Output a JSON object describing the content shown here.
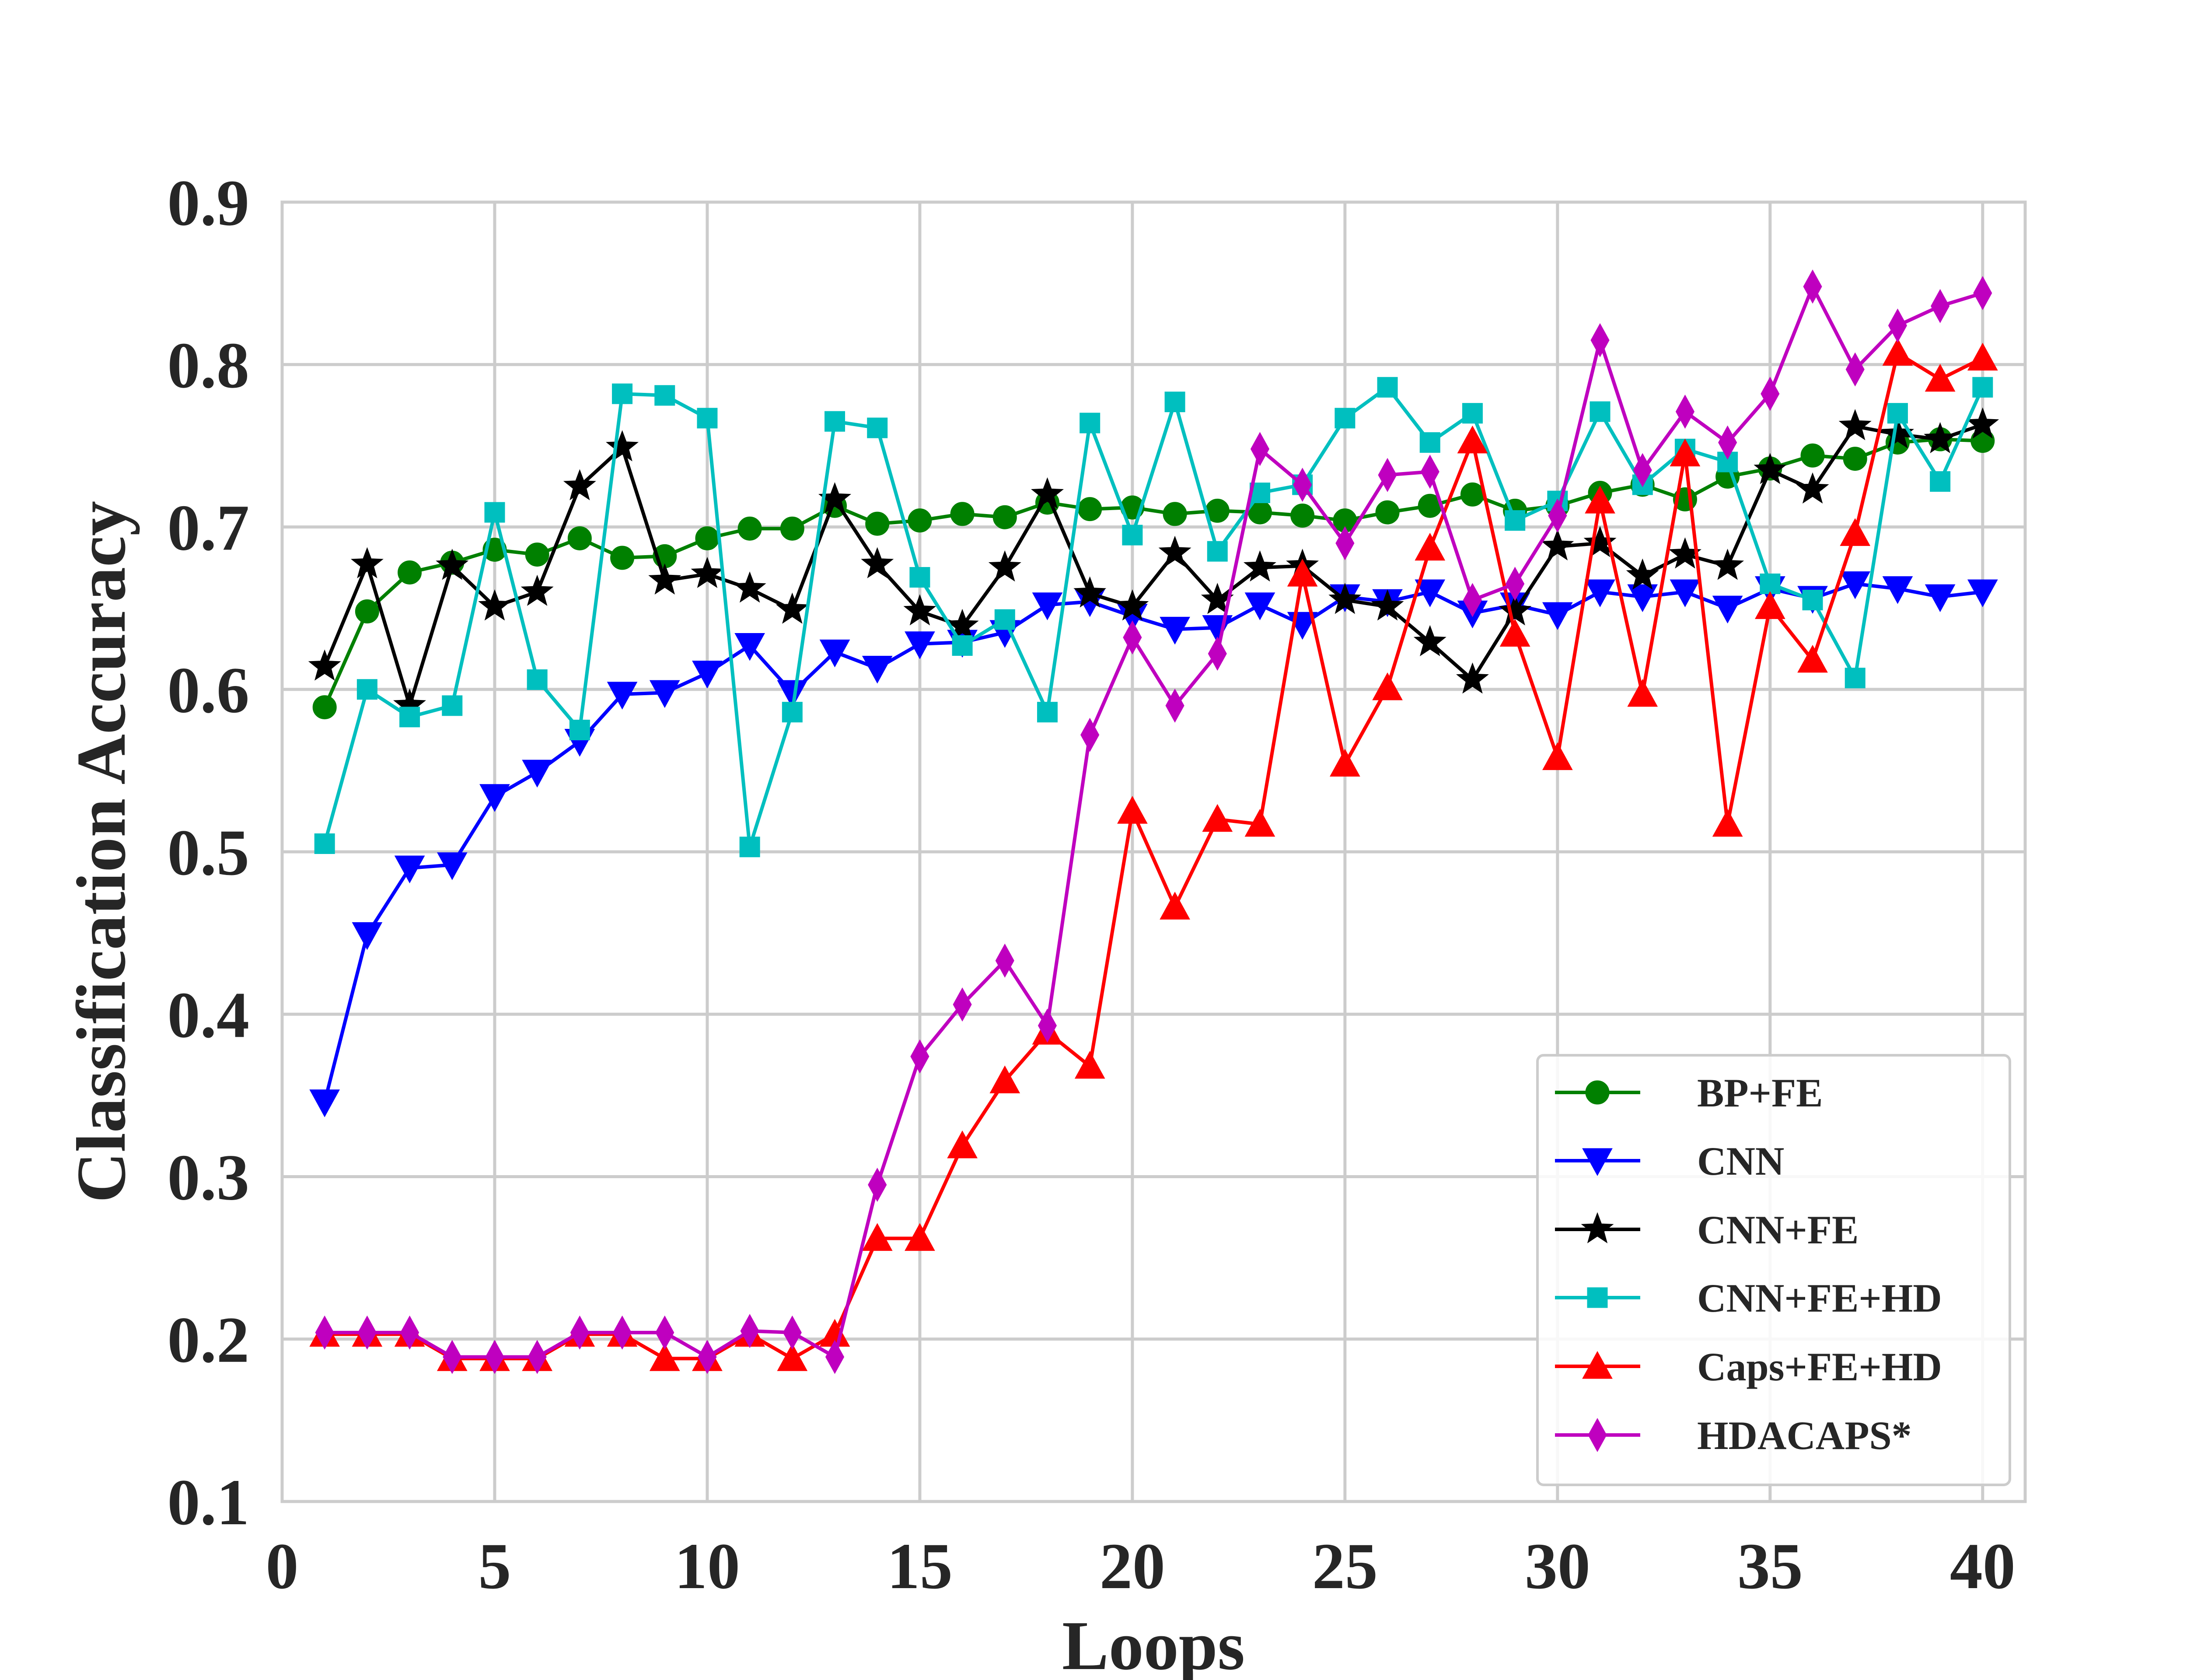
{
  "chart_data": {
    "type": "line",
    "title": "",
    "xlabel": "Loops",
    "ylabel": "Classification Accuracy",
    "xlim": [
      0,
      41
    ],
    "ylim": [
      0.1,
      0.9
    ],
    "xticks": [
      0,
      5,
      10,
      15,
      20,
      25,
      30,
      35,
      40
    ],
    "xtick_labels": [
      "0",
      "5",
      "10",
      "15",
      "20",
      "25",
      "30",
      "35",
      "40"
    ],
    "yticks": [
      0.1,
      0.2,
      0.3,
      0.4,
      0.5,
      0.6,
      0.7,
      0.8,
      0.9
    ],
    "ytick_labels": [
      "0.1",
      "0.2",
      "0.3",
      "0.4",
      "0.5",
      "0.6",
      "0.7",
      "0.8",
      "0.9"
    ],
    "grid": true,
    "legend_position": "lower-right",
    "x": [
      1,
      2,
      3,
      4,
      5,
      6,
      7,
      8,
      9,
      10,
      11,
      12,
      13,
      14,
      15,
      16,
      17,
      18,
      19,
      20,
      21,
      22,
      23,
      24,
      25,
      26,
      27,
      28,
      29,
      30,
      31,
      32,
      33,
      34,
      35,
      36,
      37,
      38,
      39,
      40
    ],
    "series": [
      {
        "name": "BP+FE",
        "color": "#008000",
        "marker": "circle",
        "values": [
          0.589,
          0.648,
          0.672,
          0.678,
          0.686,
          0.683,
          0.693,
          0.681,
          0.682,
          0.693,
          0.699,
          0.699,
          0.713,
          0.702,
          0.704,
          0.708,
          0.706,
          0.715,
          0.711,
          0.712,
          0.708,
          0.71,
          0.709,
          0.707,
          0.704,
          0.709,
          0.713,
          0.72,
          0.71,
          0.713,
          0.721,
          0.726,
          0.717,
          0.731,
          0.736,
          0.744,
          0.742,
          0.752,
          0.754,
          0.753
        ]
      },
      {
        "name": "CNN",
        "color": "#0000ff",
        "marker": "triangle-down",
        "values": [
          0.346,
          0.449,
          0.49,
          0.492,
          0.534,
          0.549,
          0.568,
          0.597,
          0.598,
          0.61,
          0.627,
          0.598,
          0.623,
          0.613,
          0.628,
          0.629,
          0.635,
          0.652,
          0.654,
          0.645,
          0.637,
          0.638,
          0.652,
          0.64,
          0.657,
          0.654,
          0.66,
          0.647,
          0.652,
          0.646,
          0.66,
          0.657,
          0.66,
          0.65,
          0.662,
          0.656,
          0.665,
          0.662,
          0.657,
          0.66
        ]
      },
      {
        "name": "CNN+FE",
        "color": "#000000",
        "marker": "star",
        "values": [
          0.614,
          0.677,
          0.59,
          0.676,
          0.651,
          0.66,
          0.725,
          0.749,
          0.667,
          0.671,
          0.662,
          0.649,
          0.717,
          0.677,
          0.648,
          0.639,
          0.675,
          0.72,
          0.659,
          0.651,
          0.684,
          0.655,
          0.675,
          0.676,
          0.655,
          0.651,
          0.629,
          0.606,
          0.648,
          0.688,
          0.69,
          0.67,
          0.683,
          0.676,
          0.735,
          0.723,
          0.762,
          0.757,
          0.754,
          0.763
        ]
      },
      {
        "name": "CNN+FE+HD",
        "color": "#00bfbf",
        "marker": "square",
        "values": [
          0.505,
          0.6,
          0.583,
          0.59,
          0.709,
          0.606,
          0.575,
          0.782,
          0.781,
          0.767,
          0.503,
          0.586,
          0.765,
          0.761,
          0.669,
          0.627,
          0.643,
          0.586,
          0.764,
          0.695,
          0.777,
          0.685,
          0.721,
          0.726,
          0.767,
          0.786,
          0.752,
          0.77,
          0.704,
          0.716,
          0.771,
          0.726,
          0.748,
          0.74,
          0.665,
          0.655,
          0.607,
          0.77,
          0.728,
          0.786
        ]
      },
      {
        "name": "Caps+FE+HD",
        "color": "#ff0000",
        "marker": "triangle-up",
        "values": [
          0.203,
          0.203,
          0.203,
          0.188,
          0.188,
          0.188,
          0.203,
          0.203,
          0.188,
          0.188,
          0.203,
          0.188,
          0.203,
          0.262,
          0.262,
          0.319,
          0.359,
          0.389,
          0.368,
          0.525,
          0.466,
          0.52,
          0.517,
          0.671,
          0.554,
          0.601,
          0.687,
          0.753,
          0.634,
          0.558,
          0.716,
          0.597,
          0.745,
          0.517,
          0.651,
          0.618,
          0.696,
          0.807,
          0.791,
          0.804
        ]
      },
      {
        "name": "HDACAPS*",
        "color": "#bf00bf",
        "marker": "diamond",
        "values": [
          0.204,
          0.204,
          0.204,
          0.189,
          0.189,
          0.189,
          0.204,
          0.204,
          0.204,
          0.189,
          0.205,
          0.204,
          0.189,
          0.295,
          0.374,
          0.406,
          0.433,
          0.393,
          0.572,
          0.632,
          0.59,
          0.622,
          0.748,
          0.726,
          0.69,
          0.732,
          0.734,
          0.655,
          0.665,
          0.707,
          0.815,
          0.735,
          0.771,
          0.752,
          0.782,
          0.848,
          0.797,
          0.824,
          0.836,
          0.844
        ]
      }
    ]
  }
}
